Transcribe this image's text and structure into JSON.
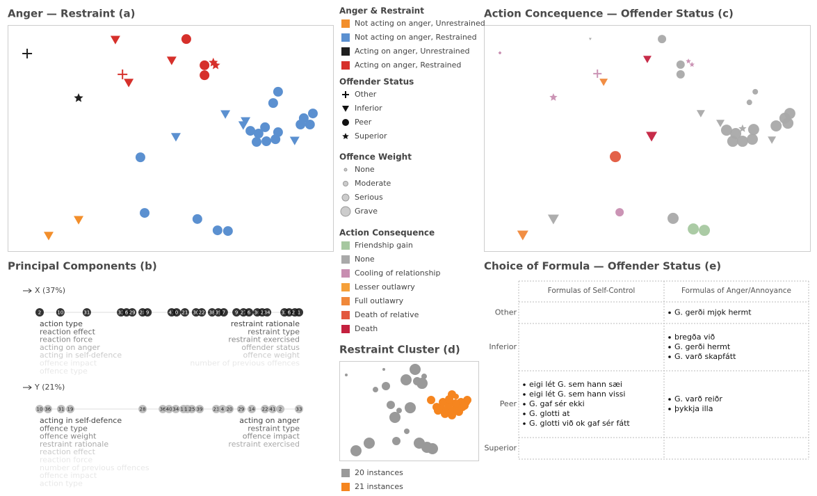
{
  "chart_data": [
    {
      "type": "scatter",
      "title": "Anger — Restraint (a)",
      "xlim": [
        0,
        100
      ],
      "ylim": [
        0,
        100
      ],
      "series": [
        {
          "color": "#1f1f1f",
          "marker": "plus",
          "x": [
            6.0
          ],
          "y": [
            87.4
          ]
        },
        {
          "color": "#1f1f1f",
          "marker": "star",
          "x": [
            21.8
          ],
          "y": [
            67.7
          ]
        },
        {
          "color": "#d6302b",
          "marker": "triangle",
          "x": [
            33.1,
            50.4,
            37.2
          ],
          "y": [
            93.5,
            84.3,
            74.5
          ]
        },
        {
          "color": "#d6302b",
          "marker": "plus",
          "x": [
            35.3
          ],
          "y": [
            78.2
          ]
        },
        {
          "color": "#d6302b",
          "marker": "circle",
          "x": [
            54.9,
            60.5,
            60.5
          ],
          "y": [
            93.8,
            82.2,
            77.8
          ]
        },
        {
          "color": "#d6302b",
          "marker": "star",
          "x": [
            63.2,
            63.9
          ],
          "y": [
            83.4,
            82.2
          ]
        },
        {
          "color": "#5b90d0",
          "marker": "circle",
          "x": [
            83.1,
            81.6,
            74.6,
            79.1,
            77.1,
            83.1,
            76.5,
            79.5,
            82.3,
            93.8,
            91.0,
            90.0,
            92.9,
            40.8,
            42.1,
            58.3,
            64.5,
            67.7
          ],
          "y": [
            70.5,
            65.5,
            53.2,
            54.8,
            52.0,
            52.6,
            48.3,
            48.6,
            49.5,
            60.9,
            58.8,
            56.0,
            56.0,
            41.5,
            16.9,
            14.2,
            9.2,
            8.9
          ]
        },
        {
          "color": "#5b90d0",
          "marker": "triangle",
          "x": [
            66.9,
            73.1,
            72.4,
            51.7,
            88.2
          ],
          "y": [
            60.6,
            57.5,
            55.7,
            50.5,
            48.9
          ]
        },
        {
          "color": "#f28e2b",
          "marker": "triangle",
          "x": [
            12.6,
            21.8
          ],
          "y": [
            6.8,
            13.8
          ]
        }
      ]
    },
    {
      "type": "scatter",
      "title": "Action Concequence — Offender Status (c)",
      "xlim": [
        0,
        100
      ],
      "ylim": [
        0,
        100
      ],
      "series": [
        {
          "color": "#a9a9a9",
          "marker": "triangle",
          "x": [
            32.6,
            66.5,
            72.5,
            88.3,
            21.3
          ],
          "y": [
            93.8,
            60.9,
            56.6,
            49.2,
            14.2
          ],
          "weight": [
            0,
            2,
            2,
            2,
            3
          ]
        },
        {
          "color": "#a9a9a9",
          "marker": "circle",
          "x": [
            54.6,
            60.3,
            60.3,
            83.2,
            81.4,
            74.4,
            76.3,
            77.2,
            79.3,
            82.3,
            82.7,
            89.6,
            92.3,
            93.8,
            93.2,
            58.0
          ],
          "y": [
            93.8,
            82.5,
            78.2,
            70.5,
            65.8,
            53.5,
            48.6,
            52.0,
            48.6,
            49.5,
            53.8,
            55.4,
            58.8,
            60.9,
            56.6,
            14.5
          ],
          "weight": [
            2,
            2,
            2,
            1,
            1,
            3,
            3,
            3,
            3,
            3,
            3,
            3,
            3,
            3,
            3,
            3
          ]
        },
        {
          "color": "#a9a9a9",
          "marker": "star",
          "x": [
            79.3
          ],
          "y": [
            54.2
          ],
          "weight": [
            2
          ]
        },
        {
          "color": "#c88eb1",
          "marker": "plus",
          "x": [
            4.9,
            34.8
          ],
          "y": [
            87.7,
            78.5
          ],
          "weight": [
            0,
            2
          ]
        },
        {
          "color": "#c88eb1",
          "marker": "star",
          "x": [
            62.7,
            63.8,
            21.3
          ],
          "y": [
            84.0,
            82.5,
            68.0
          ],
          "weight": [
            1,
            1,
            2
          ]
        },
        {
          "color": "#c88eb1",
          "marker": "circle",
          "x": [
            41.6
          ],
          "y": [
            17.2
          ],
          "weight": [
            2
          ]
        },
        {
          "color": "#f0883a",
          "marker": "triangle",
          "x": [
            36.7,
            11.9
          ],
          "y": [
            74.8,
            7.1
          ],
          "weight": [
            2,
            3
          ]
        },
        {
          "color": "#c4213f",
          "marker": "triangle",
          "x": [
            50.1,
            51.4
          ],
          "y": [
            84.9,
            50.8
          ],
          "weight": [
            2,
            3
          ]
        },
        {
          "color": "#e2583e",
          "marker": "circle",
          "x": [
            40.3
          ],
          "y": [
            41.8
          ],
          "weight": [
            3
          ]
        },
        {
          "color": "#a6c8a0",
          "marker": "circle",
          "x": [
            64.2,
            67.6
          ],
          "y": [
            9.8,
            9.2
          ],
          "weight": [
            3,
            3
          ]
        }
      ]
    },
    {
      "type": "scatter",
      "title": "Restraint Cluster (d)",
      "xlim": [
        0,
        100
      ],
      "ylim": [
        0,
        100
      ],
      "series": [
        {
          "name": "20 instances",
          "color": "#999999",
          "marker": "circle",
          "x": [
            5.0,
            32.0,
            33.5,
            54.5,
            48.0,
            59.5,
            61.0,
            37.0,
            51.0,
            40.0,
            41.0,
            21.5,
            12.0,
            57.5,
            63.0,
            67.0,
            56.0,
            43.0,
            26.0,
            48.5
          ],
          "y": [
            86.0,
            91.6,
            74.8,
            91.6,
            81.1,
            77.6,
            84.6,
            55.9,
            53.1,
            43.4,
            19.6,
            17.5,
            9.8,
            17.5,
            13.3,
            11.9,
            79.7,
            50.3,
            71.3,
            29.4
          ],
          "weight": [
            0,
            0,
            2,
            3,
            3,
            3,
            1,
            2,
            3,
            3,
            2,
            3,
            3,
            3,
            3,
            3,
            2,
            1,
            1,
            1
          ]
        },
        {
          "name": "21 instances",
          "color": "#f5851f",
          "marker": "circle",
          "x": [
            66.0,
            81.0,
            70.0,
            73.5,
            77.0,
            81.0,
            85.0,
            88.5,
            91.0,
            92.0,
            87.5,
            83.5,
            78.5,
            74.5,
            76.0,
            81.0,
            86.0,
            71.0,
            90.0,
            84.0,
            79.0
          ],
          "y": [
            60.8,
            66.4,
            53.8,
            51.7,
            50.3,
            50.3,
            51.7,
            53.8,
            58.7,
            60.8,
            58.7,
            57.3,
            55.9,
            58.7,
            46.9,
            45.5,
            49.0,
            50.3,
            55.2,
            64.3,
            61.5
          ],
          "weight": [
            2,
            2,
            2,
            2,
            2,
            2,
            2,
            2,
            2,
            2,
            2,
            2,
            2,
            2,
            2,
            2,
            2,
            2,
            2,
            1,
            2
          ]
        }
      ]
    }
  ],
  "legend": {
    "groups": [
      {
        "title": "Anger & Restraint",
        "items": [
          {
            "label": "Not acting on anger, Unrestrained",
            "color": "#f28e2b"
          },
          {
            "label": "Not acting on anger, Restrained",
            "color": "#5b90d0"
          },
          {
            "label": "Acting on anger, Unrestrained",
            "color": "#1f1f1f"
          },
          {
            "label": "Acting on anger, Restrained",
            "color": "#d6302b"
          }
        ]
      },
      {
        "title": "Offender Status",
        "items": [
          {
            "label": "Other",
            "marker": "plus"
          },
          {
            "label": "Inferior",
            "marker": "triangle"
          },
          {
            "label": "Peer",
            "marker": "circle"
          },
          {
            "label": "Superior",
            "marker": "star"
          }
        ]
      },
      {
        "title": "Offence Weight",
        "items": [
          {
            "label": "None"
          },
          {
            "label": "Moderate"
          },
          {
            "label": "Serious"
          },
          {
            "label": "Grave"
          }
        ]
      },
      {
        "title": "Action Consequence",
        "items": [
          {
            "label": "Friendship gain",
            "color": "#a6c8a0"
          },
          {
            "label": "None",
            "color": "#a9a9a9"
          },
          {
            "label": "Cooling of relationship",
            "color": "#c88eb1"
          },
          {
            "label": "Lesser outlawry",
            "color": "#f5a03a"
          },
          {
            "label": "Full outlawry",
            "color": "#f0883a"
          },
          {
            "label": "Death of relative",
            "color": "#e2583e"
          },
          {
            "label": "Death",
            "color": "#c4213f"
          }
        ]
      }
    ]
  },
  "components": {
    "title": "Principal Components (b)",
    "axes": [
      {
        "label": "X (37%)",
        "points": [
          {
            "label": "2",
            "x": 0
          },
          {
            "label": "10",
            "x": 8.0
          },
          {
            "label": "31",
            "x": 18.2
          },
          {
            "label": "33",
            "x": 31.4
          },
          {
            "label": "6",
            "x": 33.5
          },
          {
            "label": "29",
            "x": 35.7
          },
          {
            "label": "28",
            "x": 39.7
          },
          {
            "label": "9",
            "x": 41.6
          },
          {
            "label": "41",
            "x": 50.9
          },
          {
            "label": "0",
            "x": 52.8
          },
          {
            "label": "21",
            "x": 56.0
          },
          {
            "label": "30",
            "x": 60.3
          },
          {
            "label": "22",
            "x": 62.5
          },
          {
            "label": "38",
            "x": 66.5
          },
          {
            "label": "39",
            "x": 68.9
          },
          {
            "label": "7",
            "x": 71.0
          },
          {
            "label": "9",
            "x": 75.9
          },
          {
            "label": "27",
            "x": 78.6
          },
          {
            "label": "6",
            "x": 80.7
          },
          {
            "label": "36",
            "x": 83.9
          },
          {
            "label": "2",
            "x": 85.8
          },
          {
            "label": "34",
            "x": 87.7
          },
          {
            "label": "32",
            "x": 94.4
          },
          {
            "label": "6",
            "x": 96.2
          },
          {
            "label": "25",
            "x": 98.4
          },
          {
            "label": "1",
            "x": 100
          }
        ],
        "left": [
          "action type",
          "reaction effect",
          "reaction force",
          "acting on anger",
          "acting in self-defence",
          "offence impact",
          "offence type"
        ],
        "right": [
          "restraint rationale",
          "restraint type",
          "restraint exercised",
          "offender status",
          "offence weight",
          "number of previous offences"
        ]
      },
      {
        "label": "Y (21%)",
        "points": [
          {
            "label": "10",
            "x": 0
          },
          {
            "label": "36",
            "x": 3.2
          },
          {
            "label": "31",
            "x": 8.3
          },
          {
            "label": "19",
            "x": 11.8
          },
          {
            "label": "28",
            "x": 39.7
          },
          {
            "label": "36",
            "x": 47.5
          },
          {
            "label": "40",
            "x": 49.9
          },
          {
            "label": "34",
            "x": 52.5
          },
          {
            "label": "16",
            "x": 55.5
          },
          {
            "label": "12",
            "x": 57.0
          },
          {
            "label": "25",
            "x": 58.7
          },
          {
            "label": "39",
            "x": 61.7
          },
          {
            "label": "23",
            "x": 68.1
          },
          {
            "label": "4",
            "x": 70.5
          },
          {
            "label": "20",
            "x": 73.2
          },
          {
            "label": "29",
            "x": 77.7
          },
          {
            "label": "14",
            "x": 81.8
          },
          {
            "label": "22",
            "x": 86.9
          },
          {
            "label": "41",
            "x": 89.8
          },
          {
            "label": "2",
            "x": 92.8
          },
          {
            "label": "33",
            "x": 100
          }
        ],
        "left": [
          "acting in self-defence",
          "offence type",
          "offence weight",
          "restraint rationale",
          "reaction effect",
          "reaction force",
          "number of previous offences",
          "offence impact",
          "action type"
        ],
        "right": [
          "acting on anger",
          "restraint type",
          "offence impact",
          "restraint exercised"
        ]
      }
    ]
  },
  "formula_table": {
    "title": "Choice of Formula — Offender Status (e)",
    "columns": [
      "Formulas of Self-Control",
      "Formulas of Anger/Annoyance"
    ],
    "rows": [
      {
        "label": "Other",
        "cells": [
          [],
          [
            "G. gerði mjǫk hermt"
          ]
        ]
      },
      {
        "label": "Inferior",
        "cells": [
          [],
          [
            "bregða við",
            "G. gerði hermt",
            "G. varð skapfátt"
          ]
        ]
      },
      {
        "label": "Peer",
        "cells": [
          [
            "eigi lét G. sem hann sæi",
            "eigi lét G. sem hann vissi",
            "G. gaf sér ekki",
            "G. glotti at",
            "G. glotti við ok gaf sér fátt"
          ],
          [
            "G. varð reiðr",
            "þykkja illa"
          ]
        ]
      },
      {
        "label": "Superior",
        "cells": [
          [],
          []
        ]
      }
    ]
  }
}
